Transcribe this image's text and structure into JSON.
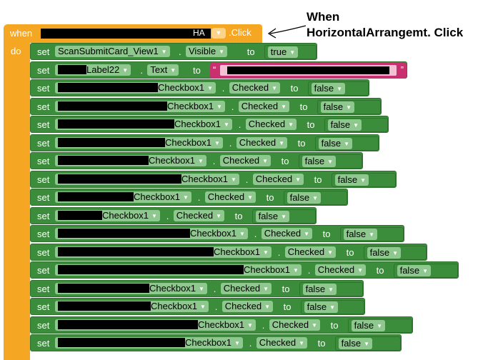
{
  "event": {
    "keyword_when": "when",
    "component_suffix": "HA",
    "dropdown_icon": "chevron-down-icon",
    "event_name": ".Click",
    "keyword_do": "do"
  },
  "annotation": {
    "line1": "When",
    "line2": "HorizontalArrangemt. Click"
  },
  "labels": {
    "set": "set",
    "to": "to",
    "dot": "."
  },
  "rows": [
    {
      "component": "ScanSubmitCard_View1",
      "property": "Visible",
      "value": "true"
    },
    {
      "component": "Label22",
      "property": "Text",
      "value_type": "text"
    },
    {
      "component": "Checkbox1",
      "property": "Checked",
      "value": "false"
    },
    {
      "component": "Checkbox1",
      "property": "Checked",
      "value": "false"
    },
    {
      "component": "Checkbox1",
      "property": "Checked",
      "value": "false"
    },
    {
      "component": "Checkbox1",
      "property": "Checked",
      "value": "false"
    },
    {
      "component": "Checkbox1",
      "property": "Checked",
      "value": "false"
    },
    {
      "component": "Checkbox1",
      "property": "Checked",
      "value": "false"
    },
    {
      "component": "Checkbox1",
      "property": "Checked",
      "value": "false"
    },
    {
      "component": "Checkbox1",
      "property": "Checked",
      "value": "false"
    },
    {
      "component": "Checkbox1",
      "property": "Checked",
      "value": "false"
    },
    {
      "component": "Checkbox1",
      "property": "Checked",
      "value": "false"
    },
    {
      "component": "Checkbox1",
      "property": "Checked",
      "value": "false"
    },
    {
      "component": "Checkbox1",
      "property": "Checked",
      "value": "false"
    },
    {
      "component": "Checkbox1",
      "property": "Checked",
      "value": "false"
    },
    {
      "component": "Checkbox1",
      "property": "Checked",
      "value": "false"
    },
    {
      "component": "Checkbox1",
      "property": "Checked",
      "value": "false"
    }
  ],
  "colors": {
    "event_orange": "#f5a623",
    "set_green": "#3b8d3b",
    "field_green": "#8fc88f",
    "text_pink": "#c8306f"
  }
}
